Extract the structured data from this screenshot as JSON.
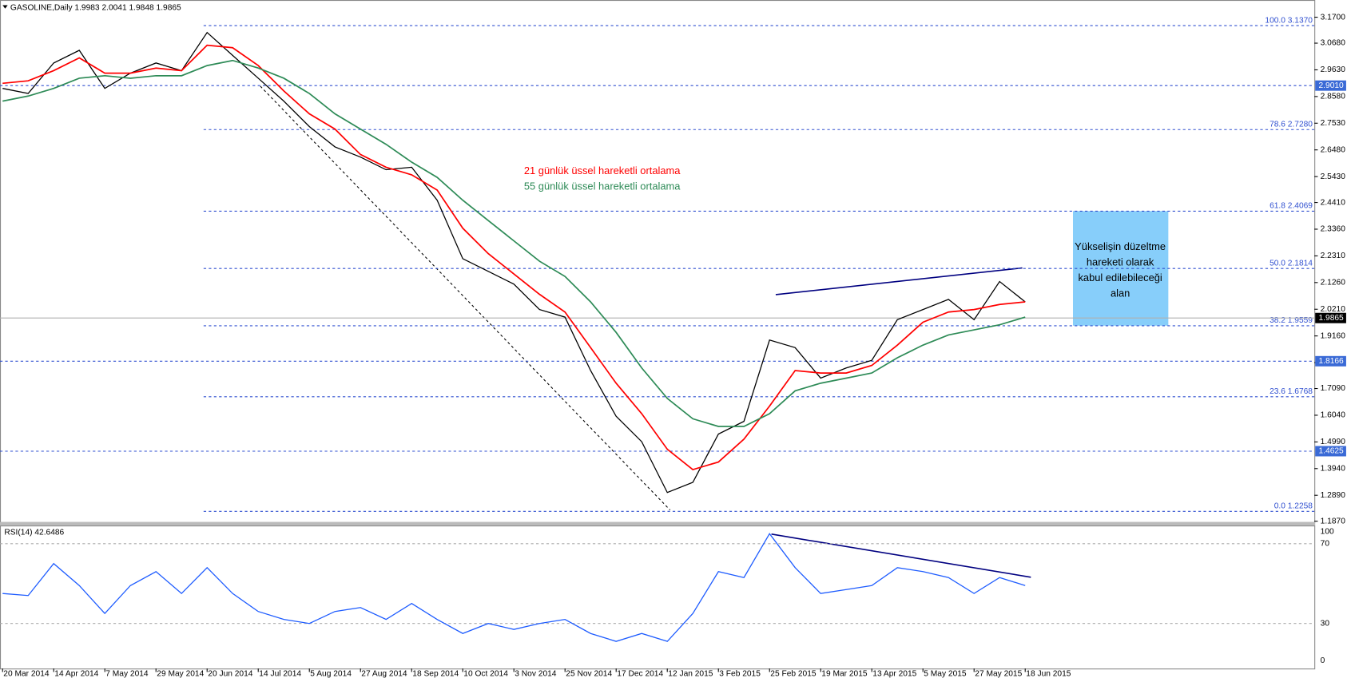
{
  "header": "GASOLINE,Daily  1.9983 2.0041 1.9848 1.9865",
  "chart_data": [
    {
      "type": "line",
      "categories": [
        "20 Mar 2014",
        null,
        "14 Apr 2014",
        null,
        "7 May 2014",
        null,
        "29 May 2014",
        null,
        "20 Jun 2014",
        null,
        "14 Jul 2014",
        null,
        "5 Aug 2014",
        null,
        "27 Aug 2014",
        null,
        "18 Sep 2014",
        null,
        "10 Oct 2014",
        null,
        "3 Nov 2014",
        null,
        "25 Nov 2014",
        null,
        "17 Dec 2014",
        null,
        "12 Jan 2015",
        null,
        "3 Feb 2015",
        null,
        "25 Feb 2015",
        null,
        "19 Mar 2015",
        null,
        "13 Apr 2015",
        null,
        "5 May 2015",
        null,
        "27 May 2015",
        null,
        "18 Jun 2015"
      ],
      "series": [
        {
          "color": "#000000",
          "values": [
            2.89,
            2.87,
            2.99,
            3.04,
            2.89,
            2.95,
            2.99,
            2.96,
            3.11,
            3.02,
            2.93,
            2.84,
            2.74,
            2.66,
            2.62,
            2.57,
            2.58,
            2.45,
            2.22,
            2.17,
            2.12,
            2.02,
            1.99,
            1.78,
            1.6,
            1.5,
            1.3,
            1.34,
            1.53,
            1.58,
            1.9,
            1.87,
            1.75,
            1.79,
            1.82,
            1.98,
            2.02,
            2.06,
            1.98,
            2.13,
            2.05
          ]
        },
        {
          "name": "21 günlük üssel hareketli ortalama",
          "color": "#ff0000",
          "values": [
            2.91,
            2.92,
            2.96,
            3.01,
            2.95,
            2.95,
            2.97,
            2.96,
            3.06,
            3.05,
            2.98,
            2.88,
            2.79,
            2.73,
            2.63,
            2.58,
            2.55,
            2.49,
            2.34,
            2.24,
            2.16,
            2.08,
            2.01,
            1.87,
            1.73,
            1.61,
            1.47,
            1.39,
            1.42,
            1.51,
            1.64,
            1.78,
            1.77,
            1.77,
            1.8,
            1.88,
            1.97,
            2.01,
            2.02,
            2.04,
            2.05
          ]
        },
        {
          "name": "55 günlük üssel hareketli ortalama",
          "color": "#2e8b57",
          "values": [
            2.84,
            2.86,
            2.89,
            2.93,
            2.94,
            2.93,
            2.94,
            2.94,
            2.98,
            3.0,
            2.97,
            2.93,
            2.87,
            2.79,
            2.73,
            2.67,
            2.6,
            2.54,
            2.45,
            2.37,
            2.29,
            2.21,
            2.15,
            2.05,
            1.93,
            1.79,
            1.67,
            1.59,
            1.56,
            1.56,
            1.61,
            1.7,
            1.73,
            1.75,
            1.77,
            1.83,
            1.88,
            1.92,
            1.94,
            1.96,
            1.99
          ]
        }
      ],
      "ylim": [
        1.187,
        3.17
      ],
      "yticks": [
        {
          "value": 3.17,
          "label": "3.1700"
        },
        {
          "value": 3.068,
          "label": "3.0680"
        },
        {
          "value": 2.963,
          "label": "2.9630"
        },
        {
          "value": 2.858,
          "label": "2.8580"
        },
        {
          "value": 2.753,
          "label": "2.7530"
        },
        {
          "value": 2.648,
          "label": "2.6480"
        },
        {
          "value": 2.543,
          "label": "2.5430"
        },
        {
          "value": 2.441,
          "label": "2.4410"
        },
        {
          "value": 2.336,
          "label": "2.3360"
        },
        {
          "value": 2.231,
          "label": "2.2310"
        },
        {
          "value": 2.126,
          "label": "2.1260"
        },
        {
          "value": 2.021,
          "label": "2.0210"
        },
        {
          "value": 1.916,
          "label": "1.9160"
        },
        {
          "value": 1.811,
          "label": "1.8110"
        },
        {
          "value": 1.709,
          "label": "1.7090"
        },
        {
          "value": 1.604,
          "label": "1.6040"
        },
        {
          "value": 1.499,
          "label": "1.4990"
        },
        {
          "value": 1.394,
          "label": "1.3940"
        },
        {
          "value": 1.289,
          "label": "1.2890"
        },
        {
          "value": 1.187,
          "label": "1.1870"
        }
      ],
      "fib_levels": [
        {
          "value": 3.137,
          "label": "100.0 3.1370"
        },
        {
          "value": 2.728,
          "label": "78.6 2.7280"
        },
        {
          "value": 2.4069,
          "label": "61.8 2.4069"
        },
        {
          "value": 2.1814,
          "label": "50.0 2.1814"
        },
        {
          "value": 1.9559,
          "label": "38.2 1.9559"
        },
        {
          "value": 1.6768,
          "label": "23.6 1.6768"
        },
        {
          "value": 1.2258,
          "label": "0.0 1.2258"
        }
      ],
      "levels": [
        {
          "value": 2.901,
          "label": "2.9010"
        },
        {
          "value": 1.8166,
          "label": "1.8166"
        },
        {
          "value": 1.4625,
          "label": "1.4625"
        }
      ],
      "current": {
        "value": 1.9865,
        "label": "1.9865"
      },
      "zone_text": [
        "Yükselişin düzeltme",
        "hareketi olarak",
        "kabul edilebileceği",
        "alan"
      ]
    },
    {
      "type": "line",
      "title": "RSI(14) 42.6486",
      "series": [
        {
          "color": "#1e5cff",
          "values": [
            45,
            44,
            60,
            49,
            35,
            49,
            56,
            45,
            58,
            45,
            36,
            32,
            30,
            36,
            38,
            32,
            40,
            32,
            25,
            30,
            27,
            30,
            32,
            25,
            21,
            25,
            21,
            35,
            56,
            53,
            75,
            58,
            45,
            47,
            49,
            58,
            56,
            53,
            45,
            53,
            49
          ]
        }
      ],
      "ylim": [
        7.4,
        79.1
      ],
      "yticks": [
        70,
        30
      ],
      "pane_max_label": "100",
      "pane_min_label": "0"
    }
  ]
}
